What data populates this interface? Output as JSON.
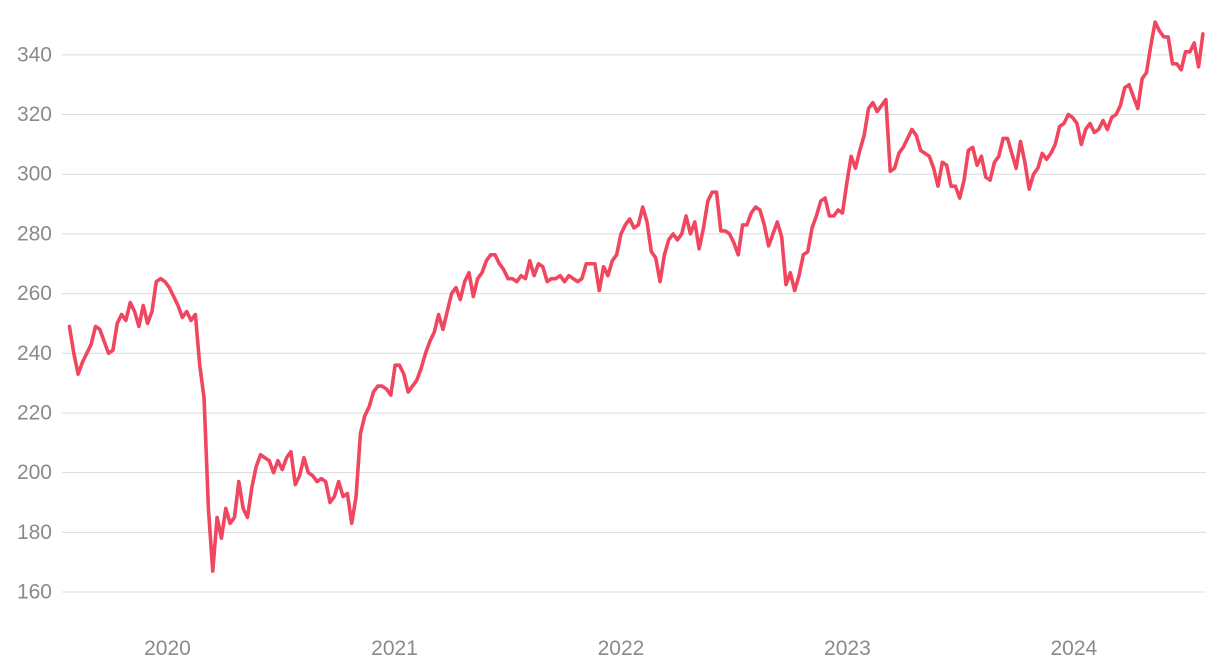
{
  "chart_data": {
    "type": "line",
    "title": "",
    "xlabel": "",
    "ylabel": "",
    "ylim": [
      160,
      350
    ],
    "xlim": [
      "2019-07-15",
      "2024-08-01"
    ],
    "grid": true,
    "legend": "none",
    "y_ticks": [
      "160",
      "180",
      "200",
      "220",
      "240",
      "260",
      "280",
      "300",
      "320",
      "340"
    ],
    "y_tick_values": [
      160,
      180,
      200,
      220,
      240,
      260,
      280,
      300,
      320,
      340
    ],
    "x_ticks": [
      "2020",
      "2021",
      "2022",
      "2023",
      "2024"
    ],
    "x_tick_dates": [
      "2020-01-01",
      "2021-01-01",
      "2022-01-01",
      "2023-01-01",
      "2024-01-01"
    ],
    "colors": {
      "line": "#f0465f",
      "grid": "#dcdcdc",
      "tick_text": "#8a8a8a"
    },
    "series": [
      {
        "x": [
          "2019-07-27",
          "2019-08-03",
          "2019-08-10",
          "2019-08-17",
          "2019-08-24",
          "2019-08-31",
          "2019-09-07",
          "2019-09-14",
          "2019-09-21",
          "2019-09-28",
          "2019-10-05",
          "2019-10-12",
          "2019-10-19",
          "2019-10-26",
          "2019-11-02",
          "2019-11-09",
          "2019-11-16",
          "2019-11-23",
          "2019-11-30",
          "2019-12-07",
          "2019-12-14",
          "2019-12-21",
          "2019-12-28",
          "2020-01-04",
          "2020-01-11",
          "2020-01-18",
          "2020-01-25",
          "2020-02-01",
          "2020-02-08",
          "2020-02-15",
          "2020-02-22",
          "2020-02-29",
          "2020-03-07",
          "2020-03-14",
          "2020-03-21",
          "2020-03-28",
          "2020-04-04",
          "2020-04-11",
          "2020-04-18",
          "2020-04-25",
          "2020-05-02",
          "2020-05-09",
          "2020-05-16",
          "2020-05-23",
          "2020-05-30",
          "2020-06-06",
          "2020-06-13",
          "2020-06-20",
          "2020-06-27",
          "2020-07-04",
          "2020-07-11",
          "2020-07-18",
          "2020-07-25",
          "2020-08-01",
          "2020-08-08",
          "2020-08-15",
          "2020-08-22",
          "2020-08-29",
          "2020-09-05",
          "2020-09-12",
          "2020-09-19",
          "2020-09-26",
          "2020-10-03",
          "2020-10-10",
          "2020-10-17",
          "2020-10-24",
          "2020-10-31",
          "2020-11-07",
          "2020-11-14",
          "2020-11-21",
          "2020-11-28",
          "2020-12-05",
          "2020-12-12",
          "2020-12-19",
          "2020-12-26",
          "2021-01-02",
          "2021-01-09",
          "2021-01-16",
          "2021-01-23",
          "2021-01-30",
          "2021-02-06",
          "2021-02-13",
          "2021-02-20",
          "2021-02-27",
          "2021-03-06",
          "2021-03-13",
          "2021-03-20",
          "2021-03-27",
          "2021-04-03",
          "2021-04-10",
          "2021-04-17",
          "2021-04-24",
          "2021-05-01",
          "2021-05-08",
          "2021-05-15",
          "2021-05-22",
          "2021-05-29",
          "2021-06-05",
          "2021-06-12",
          "2021-06-19",
          "2021-06-26",
          "2021-07-03",
          "2021-07-10",
          "2021-07-17",
          "2021-07-24",
          "2021-07-31",
          "2021-08-07",
          "2021-08-14",
          "2021-08-21",
          "2021-08-28",
          "2021-09-04",
          "2021-09-11",
          "2021-09-18",
          "2021-09-25",
          "2021-10-02",
          "2021-10-09",
          "2021-10-16",
          "2021-10-23",
          "2021-10-30",
          "2021-11-06",
          "2021-11-13",
          "2021-11-20",
          "2021-11-27",
          "2021-12-04",
          "2021-12-11",
          "2021-12-18",
          "2021-12-25",
          "2022-01-01",
          "2022-01-08",
          "2022-01-15",
          "2022-01-22",
          "2022-01-29",
          "2022-02-05",
          "2022-02-12",
          "2022-02-19",
          "2022-02-26",
          "2022-03-05",
          "2022-03-12",
          "2022-03-19",
          "2022-03-26",
          "2022-04-02",
          "2022-04-09",
          "2022-04-16",
          "2022-04-23",
          "2022-04-30",
          "2022-05-07",
          "2022-05-14",
          "2022-05-21",
          "2022-05-28",
          "2022-06-04",
          "2022-06-11",
          "2022-06-18",
          "2022-06-25",
          "2022-07-02",
          "2022-07-09",
          "2022-07-16",
          "2022-07-23",
          "2022-07-30",
          "2022-08-06",
          "2022-08-13",
          "2022-08-20",
          "2022-08-27",
          "2022-09-03",
          "2022-09-10",
          "2022-09-17",
          "2022-09-24",
          "2022-10-01",
          "2022-10-08",
          "2022-10-15",
          "2022-10-22",
          "2022-10-29",
          "2022-11-05",
          "2022-11-12",
          "2022-11-19",
          "2022-11-26",
          "2022-12-03",
          "2022-12-10",
          "2022-12-17",
          "2022-12-24",
          "2022-12-31",
          "2023-01-07",
          "2023-01-14",
          "2023-01-21",
          "2023-01-28",
          "2023-02-04",
          "2023-02-11",
          "2023-02-18",
          "2023-02-25",
          "2023-03-04",
          "2023-03-11",
          "2023-03-18",
          "2023-03-25",
          "2023-04-01",
          "2023-04-08",
          "2023-04-15",
          "2023-04-22",
          "2023-04-29",
          "2023-05-06",
          "2023-05-13",
          "2023-05-20",
          "2023-05-27",
          "2023-06-03",
          "2023-06-10",
          "2023-06-17",
          "2023-06-24",
          "2023-07-01",
          "2023-07-08",
          "2023-07-15",
          "2023-07-22",
          "2023-07-29",
          "2023-08-05",
          "2023-08-12",
          "2023-08-19",
          "2023-08-26",
          "2023-09-02",
          "2023-09-09",
          "2023-09-16",
          "2023-09-23",
          "2023-09-30",
          "2023-10-07",
          "2023-10-14",
          "2023-10-21",
          "2023-10-28",
          "2023-11-04",
          "2023-11-11",
          "2023-11-18",
          "2023-11-25",
          "2023-12-02",
          "2023-12-09",
          "2023-12-16",
          "2023-12-23",
          "2023-12-30",
          "2024-01-06",
          "2024-01-13",
          "2024-01-20",
          "2024-01-27",
          "2024-02-03",
          "2024-02-10",
          "2024-02-17",
          "2024-02-24",
          "2024-03-02",
          "2024-03-09",
          "2024-03-16",
          "2024-03-23",
          "2024-03-30",
          "2024-04-06",
          "2024-04-13",
          "2024-04-20",
          "2024-04-27",
          "2024-05-04",
          "2024-05-11",
          "2024-05-18",
          "2024-05-25",
          "2024-06-01",
          "2024-06-08",
          "2024-06-15",
          "2024-06-22",
          "2024-06-29",
          "2024-07-06",
          "2024-07-13",
          "2024-07-20",
          "2024-07-27"
        ],
        "y": [
          249,
          240,
          233,
          237,
          240,
          243,
          249,
          248,
          244,
          240,
          241,
          250,
          253,
          251,
          257,
          254,
          249,
          256,
          250,
          254,
          264,
          265,
          264,
          262,
          259,
          256,
          252,
          254,
          251,
          253,
          236,
          225,
          188,
          167,
          185,
          178,
          188,
          183,
          185,
          197,
          188,
          185,
          195,
          202,
          206,
          205,
          204,
          200,
          204,
          201,
          205,
          207,
          196,
          199,
          205,
          200,
          199,
          197,
          198,
          197,
          190,
          192,
          197,
          192,
          193,
          183,
          192,
          213,
          219,
          222,
          227,
          229,
          229,
          228,
          226,
          236,
          236,
          233,
          227,
          229,
          231,
          235,
          240,
          244,
          247,
          253,
          248,
          254,
          260,
          262,
          258,
          264,
          267,
          259,
          265,
          267,
          271,
          273,
          273,
          270,
          268,
          265,
          265,
          264,
          266,
          265,
          271,
          266,
          270,
          269,
          264,
          265,
          265,
          266,
          264,
          266,
          265,
          264,
          265,
          270,
          270,
          270,
          261,
          269,
          266,
          271,
          273,
          280,
          283,
          285,
          282,
          283,
          289,
          284,
          274,
          272,
          264,
          273,
          278,
          280,
          278,
          280,
          286,
          280,
          284,
          275,
          282,
          291,
          294,
          294,
          281,
          281,
          280,
          277,
          273,
          283,
          283,
          287,
          289,
          288,
          283,
          276,
          280,
          284,
          279,
          263,
          267,
          261,
          266,
          273,
          274,
          282,
          286,
          291,
          292,
          286,
          286,
          288,
          287,
          297,
          306,
          302,
          308,
          313,
          322,
          324,
          321,
          323,
          325,
          301,
          302,
          307,
          309,
          312,
          315,
          313,
          308,
          307,
          306,
          302,
          296,
          304,
          303,
          296,
          296,
          292,
          298,
          308,
          309,
          303,
          306,
          299,
          298,
          304,
          306,
          312,
          312,
          307,
          302,
          311,
          304,
          295,
          300,
          302,
          307,
          305,
          307,
          310,
          316,
          317,
          320,
          319,
          317,
          310,
          315,
          317,
          314,
          315,
          318,
          315,
          319,
          320,
          323,
          329,
          330,
          326,
          322,
          332,
          334,
          343,
          351,
          348,
          346,
          346,
          337,
          337,
          335,
          341,
          341,
          344,
          336,
          347
        ]
      }
    ]
  }
}
